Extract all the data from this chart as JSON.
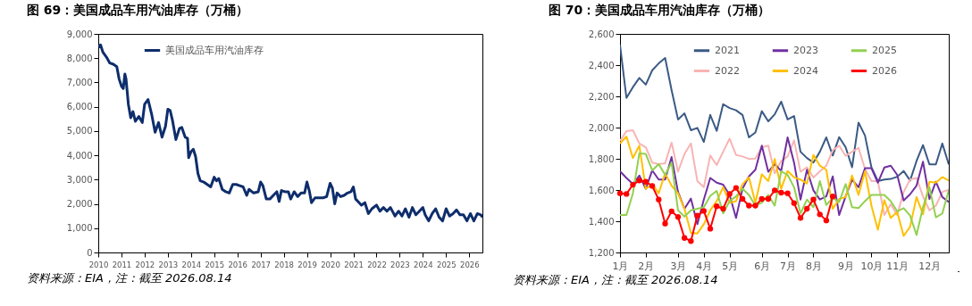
{
  "chart_data": [
    {
      "type": "line",
      "title": "图 69：美国成品车用汽油库存（万桶）",
      "x": [
        "2010-01-01",
        "2010-02-06",
        "2010-03-14",
        "2010-05-08",
        "2010-07-02",
        "2010-08-26",
        "2010-10-20",
        "2010-11-25",
        "2011-01-01",
        "2011-01-30",
        "2011-02-24",
        "2011-03-14",
        "2011-04-20",
        "2011-05-27",
        "2011-07-02",
        "2011-08-08",
        "2011-10-01",
        "2011-11-25",
        "2012-01-01",
        "2012-02-24",
        "2012-04-20",
        "2012-06-14",
        "2012-08-08",
        "2012-10-01",
        "2012-11-25",
        "2013-01-01",
        "2013-02-06",
        "2013-03-14",
        "2013-05-08",
        "2013-07-02",
        "2013-08-08",
        "2013-10-01",
        "2013-11-07",
        "2013-11-25",
        "2014-01-01",
        "2014-02-06",
        "2014-03-14",
        "2014-04-20",
        "2014-05-27",
        "2014-07-20",
        "2014-09-13",
        "2014-11-07",
        "2015-01-01",
        "2015-02-06",
        "2015-03-14",
        "2015-05-08",
        "2015-07-02",
        "2015-08-26",
        "2015-10-20",
        "2015-12-14",
        "2016-02-06",
        "2016-04-01",
        "2016-05-27",
        "2016-07-02",
        "2016-09-13",
        "2016-11-25",
        "2017-01-01",
        "2017-02-06",
        "2017-04-01",
        "2017-05-27",
        "2017-07-20",
        "2017-09-13",
        "2017-10-20",
        "2017-11-25",
        "2018-01-19",
        "2018-03-14",
        "2018-04-20",
        "2018-06-14",
        "2018-08-08",
        "2018-10-01",
        "2018-11-25",
        "2019-01-01",
        "2019-02-06",
        "2019-03-14",
        "2019-05-08",
        "2019-07-02",
        "2019-09-13",
        "2019-11-07",
        "2020-01-01",
        "2020-02-06",
        "2020-03-14",
        "2020-04-20",
        "2020-06-14",
        "2020-08-08",
        "2020-10-01",
        "2020-11-25",
        "2021-01-01",
        "2021-02-06",
        "2021-03-14",
        "2021-05-08",
        "2021-07-02",
        "2021-08-26",
        "2021-10-20",
        "2022-01-01",
        "2022-02-24",
        "2022-04-20",
        "2022-06-14",
        "2022-08-08",
        "2022-10-20",
        "2022-12-14",
        "2023-02-06",
        "2023-04-01",
        "2023-05-27",
        "2023-07-20",
        "2023-09-13",
        "2023-11-07",
        "2024-01-01",
        "2024-02-06",
        "2024-04-01",
        "2024-05-27",
        "2024-07-20",
        "2024-09-13",
        "2024-11-07",
        "2025-01-01",
        "2025-02-24",
        "2025-04-20",
        "2025-06-14",
        "2025-08-08",
        "2025-10-01",
        "2025-11-25",
        "2026-01-19",
        "2026-03-14",
        "2026-05-08",
        "2026-07-02",
        "2026-07-27"
      ],
      "series": [
        {
          "name": "美国成品车用汽油库存",
          "color": "#0e2d6b",
          "values": [
            8450,
            8550,
            8250,
            8050,
            7800,
            7750,
            7650,
            7150,
            6850,
            6750,
            7350,
            7150,
            6100,
            5550,
            5800,
            5400,
            5600,
            5350,
            6100,
            6300,
            5700,
            4950,
            5350,
            4750,
            5200,
            5900,
            5850,
            5450,
            4650,
            5100,
            5150,
            4750,
            4700,
            3900,
            4150,
            4250,
            3950,
            3250,
            2950,
            2900,
            2800,
            2700,
            3100,
            2950,
            3050,
            2600,
            2500,
            2450,
            2800,
            2800,
            2750,
            2700,
            2350,
            2600,
            2450,
            2500,
            2900,
            2750,
            2200,
            2200,
            2350,
            2500,
            2100,
            2550,
            2500,
            2500,
            2200,
            2500,
            2300,
            2450,
            2450,
            2900,
            2550,
            2050,
            2250,
            2250,
            2250,
            2300,
            2850,
            2650,
            2000,
            2450,
            2300,
            2350,
            2450,
            2500,
            2700,
            2200,
            2100,
            1950,
            2050,
            1600,
            1800,
            1950,
            1700,
            1850,
            1700,
            1850,
            1500,
            1700,
            1500,
            1800,
            1450,
            1850,
            1550,
            1700,
            1850,
            1550,
            1300,
            1600,
            1800,
            1450,
            1300,
            1800,
            1500,
            1600,
            1750,
            1550,
            1550,
            1300,
            1600,
            1300,
            1600,
            1550,
            1450
          ]
        }
      ],
      "xlim": [
        "2010-01-01",
        "2026-07-27"
      ],
      "xticks": [
        "2010",
        "2011",
        "2012",
        "2013",
        "2014",
        "2015",
        "2016",
        "2017",
        "2018",
        "2019",
        "2020",
        "2021",
        "2022",
        "2023",
        "2024",
        "2025",
        "2026"
      ],
      "ylim": [
        0,
        9000
      ],
      "yticks": [
        {
          "value": 0,
          "label": "0"
        },
        {
          "value": 1000,
          "label": "1,000"
        },
        {
          "value": 2000,
          "label": "2,000"
        },
        {
          "value": 3000,
          "label": "3,000"
        },
        {
          "value": 4000,
          "label": "4,000"
        },
        {
          "value": 5000,
          "label": "5,000"
        },
        {
          "value": 6000,
          "label": "6,000"
        },
        {
          "value": 7000,
          "label": "7,000"
        },
        {
          "value": 8000,
          "label": "8,000"
        },
        {
          "value": 9000,
          "label": "9,000"
        }
      ],
      "grid": false,
      "legend": "top left",
      "annotations": [
        "资料来源：EIA，注：截至 2026.08.14"
      ]
    },
    {
      "type": "line",
      "title": "图 70：美国成品车用汽油库存（万桶）",
      "categories": [
        "1月",
        null,
        null,
        null,
        "2月",
        null,
        null,
        null,
        null,
        "3月",
        null,
        null,
        null,
        "4月",
        null,
        null,
        null,
        "5月",
        null,
        null,
        null,
        null,
        "6月",
        null,
        null,
        null,
        "7月",
        null,
        null,
        null,
        "8月",
        null,
        null,
        null,
        null,
        "9月",
        null,
        null,
        null,
        "10月",
        null,
        null,
        null,
        "11月",
        null,
        null,
        null,
        null,
        "12月",
        null,
        null,
        null
      ],
      "series": [
        {
          "name": "2021",
          "color": "#3b5a85",
          "values": [
            2529,
            2190,
            2259,
            2318,
            2275,
            2367,
            2411,
            2446,
            2240,
            2052,
            2091,
            1983,
            1998,
            1908,
            2081,
            1979,
            2150,
            2125,
            2111,
            2081,
            1937,
            1969,
            2105,
            2040,
            2085,
            2166,
            2052,
            2074,
            1845,
            1805,
            1776,
            1845,
            1937,
            1821,
            1939,
            1874,
            1746,
            2032,
            1949,
            1746,
            1657,
            1667,
            1671,
            1685,
            1722,
            1661,
            1786,
            1888,
            1764,
            1764,
            1898,
            1764
          ]
        },
        {
          "name": "2022",
          "color": "#f8b4b4",
          "values": [
            1914,
            1977,
            1983,
            1898,
            1874,
            1776,
            1766,
            1772,
            1904,
            1717,
            1831,
            1898,
            1657,
            1618,
            1821,
            1760,
            1845,
            1929,
            1825,
            1815,
            1799,
            1801,
            1874,
            1884,
            1707,
            1786,
            1815,
            1918,
            1717,
            1746,
            1680,
            1720,
            1756,
            1855,
            1884,
            1819,
            1845,
            1870,
            1736,
            1657,
            1657,
            1440,
            1509,
            1440,
            1588,
            1667,
            1677,
            1559,
            1470,
            1500,
            1588,
            1602
          ]
        },
        {
          "name": "2023",
          "color": "#7030a0",
          "values": [
            1720,
            1677,
            1638,
            1693,
            1608,
            1726,
            1667,
            1667,
            1811,
            1588,
            1480,
            1545,
            1381,
            1539,
            1677,
            1647,
            1634,
            1569,
            1421,
            1608,
            1687,
            1730,
            1884,
            1717,
            1766,
            1722,
            1937,
            1776,
            1539,
            1730,
            1598,
            1539,
            1559,
            1687,
            1440,
            1559,
            1667,
            1618,
            1740,
            1740,
            1647,
            1744,
            1756,
            1697,
            1533,
            1573,
            1628,
            1782,
            1543,
            1653,
            1555,
            1523
          ]
        },
        {
          "name": "2024",
          "color": "#ffc000",
          "values": [
            1898,
            1943,
            1805,
            1884,
            1608,
            1638,
            1579,
            1707,
            1628,
            1579,
            1480,
            1326,
            1322,
            1381,
            1470,
            1529,
            1618,
            1519,
            1529,
            1638,
            1681,
            1519,
            1701,
            1657,
            1799,
            1608,
            1722,
            1681,
            1667,
            1642,
            1825,
            1756,
            1730,
            1480,
            1543,
            1555,
            1693,
            1569,
            1720,
            1500,
            1346,
            1535,
            1421,
            1460,
            1306,
            1365,
            1555,
            1444,
            1653,
            1647,
            1683,
            1661
          ]
        },
        {
          "name": "2025",
          "color": "#92d050",
          "values": [
            1440,
            1440,
            1579,
            1835,
            1831,
            1726,
            1766,
            1697,
            1776,
            1470,
            1430,
            1470,
            1480,
            1490,
            1563,
            1594,
            1450,
            1529,
            1559,
            1608,
            1569,
            1500,
            1519,
            1569,
            1500,
            1720,
            1697,
            1618,
            1450,
            1539,
            1490,
            1657,
            1504,
            1549,
            1523,
            1638,
            1490,
            1484,
            1529,
            1569,
            1569,
            1569,
            1529,
            1464,
            1484,
            1436,
            1312,
            1490,
            1618,
            1425,
            1450,
            1598
          ]
        },
        {
          "name": "2026",
          "color": "#ff0000",
          "marker": "circle",
          "values": [
            1579,
            1575,
            1634,
            1661,
            1653,
            1626,
            1539,
            1385,
            1464,
            1427,
            1293,
            1273,
            1436,
            1466,
            1352,
            1496,
            1480,
            1575,
            1614,
            1543,
            1500,
            1500,
            1543,
            1543,
            1598,
            1583,
            1579,
            1516,
            1421,
            1480,
            1539,
            1444,
            1405,
            1559,
            null,
            null,
            null,
            null,
            null,
            null,
            null,
            null,
            null,
            null,
            null,
            null,
            null,
            null,
            null,
            null,
            null,
            null
          ]
        }
      ],
      "ylim": [
        1200,
        2600
      ],
      "yticks": [
        {
          "value": 1200,
          "label": "1,200"
        },
        {
          "value": 1400,
          "label": "1,400"
        },
        {
          "value": 1600,
          "label": "1,600"
        },
        {
          "value": 1800,
          "label": "1,800"
        },
        {
          "value": 2000,
          "label": "2,000"
        },
        {
          "value": 2200,
          "label": "2,200"
        },
        {
          "value": 2400,
          "label": "2,400"
        },
        {
          "value": 2600,
          "label": "2,600"
        }
      ],
      "grid": false,
      "legend": "top",
      "annotations": [
        "资料来源：EIA，注：截至 2026.08.14"
      ]
    }
  ]
}
